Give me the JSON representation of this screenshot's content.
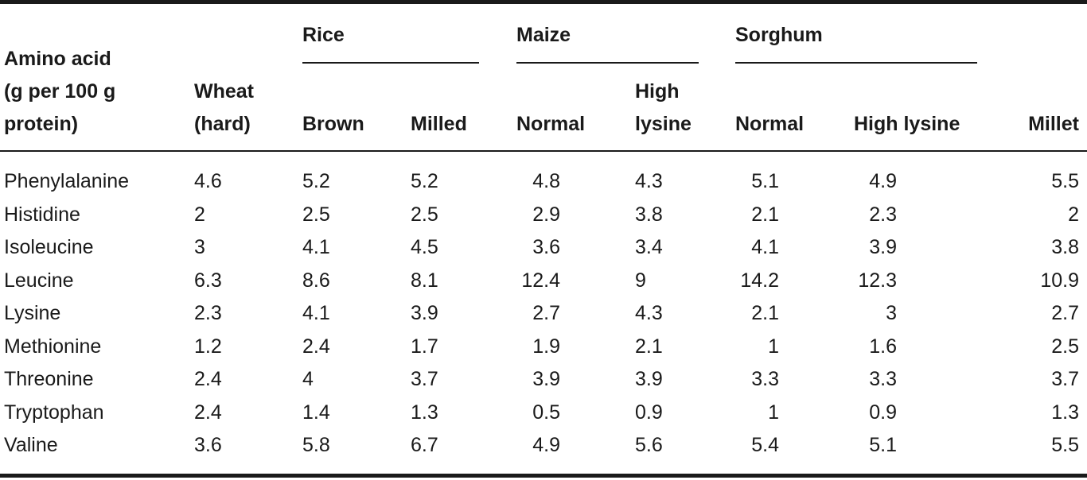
{
  "table": {
    "header": {
      "amino_acid_lines": [
        "Amino acid",
        "(g per 100 g",
        "protein)"
      ],
      "wheat_lines": [
        "Wheat",
        "(hard)"
      ],
      "groups": {
        "rice": "Rice",
        "maize": "Maize",
        "sorghum": "Sorghum"
      },
      "sub": {
        "rice_brown": "Brown",
        "rice_milled": "Milled",
        "maize_normal": "Normal",
        "maize_high_lines": [
          "High",
          "lysine"
        ],
        "sorghum_normal": "Normal",
        "sorghum_high": "High lysine",
        "millet": "Millet"
      }
    },
    "rows": [
      [
        "Phenylalanine",
        "4.6",
        "5.2",
        "5.2",
        "4.8",
        "4.3",
        "5.1",
        "4.9",
        "5.5"
      ],
      [
        "Histidine",
        "2",
        "2.5",
        "2.5",
        "2.9",
        "3.8",
        "2.1",
        "2.3",
        "2"
      ],
      [
        "Isoleucine",
        "3",
        "4.1",
        "4.5",
        "3.6",
        "3.4",
        "4.1",
        "3.9",
        "3.8"
      ],
      [
        "Leucine",
        "6.3",
        "8.6",
        "8.1",
        "12.4",
        "9",
        "14.2",
        "12.3",
        "10.9"
      ],
      [
        "Lysine",
        "2.3",
        "4.1",
        "3.9",
        "2.7",
        "4.3",
        "2.1",
        "3",
        "2.7"
      ],
      [
        "Methionine",
        "1.2",
        "2.4",
        "1.7",
        "1.9",
        "2.1",
        "1",
        "1.6",
        "2.5"
      ],
      [
        "Threonine",
        "2.4",
        "4",
        "3.7",
        "3.9",
        "3.9",
        "3.3",
        "3.3",
        "3.7"
      ],
      [
        "Tryptophan",
        "2.4",
        "1.4",
        "1.3",
        "0.5",
        "0.9",
        "1",
        "0.9",
        "1.3"
      ],
      [
        "Valine",
        "3.6",
        "5.8",
        "6.7",
        "4.9",
        "5.6",
        "5.4",
        "5.1",
        "5.5"
      ]
    ]
  }
}
